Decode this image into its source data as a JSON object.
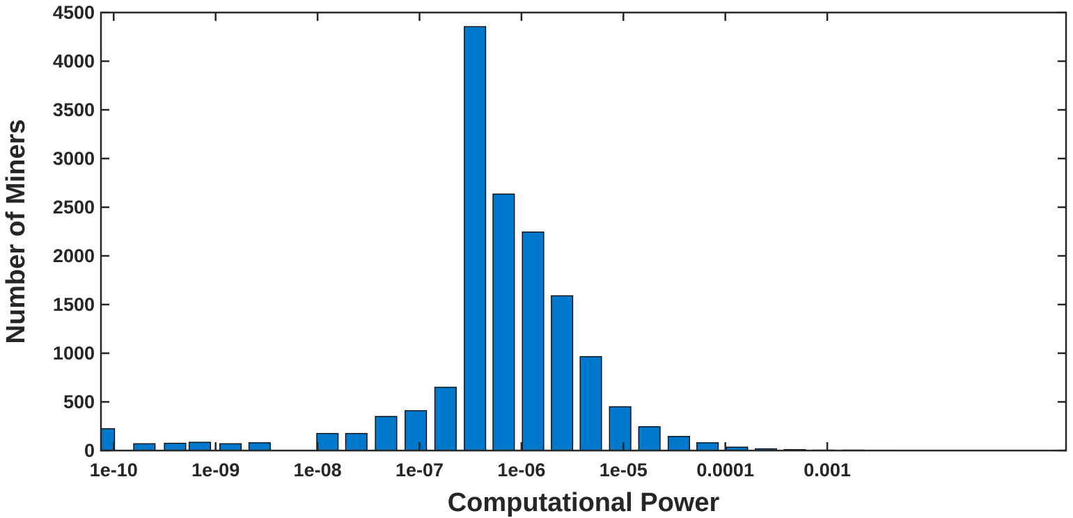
{
  "chart_data": {
    "type": "bar",
    "xlabel": "Computational Power",
    "ylabel": "Number of Miners",
    "xscale": "log",
    "xlim": [
      7.5e-11,
      0.22
    ],
    "ylim": [
      0,
      4500
    ],
    "grid": false,
    "bar_color": "#0079CC",
    "x_ticks": [
      {
        "value": 1e-10,
        "label": "1e-10"
      },
      {
        "value": 1e-09,
        "label": "1e-09"
      },
      {
        "value": 1e-08,
        "label": "1e-08"
      },
      {
        "value": 1e-07,
        "label": "1e-07"
      },
      {
        "value": 1e-06,
        "label": "1e-06"
      },
      {
        "value": 1e-05,
        "label": "1e-05"
      },
      {
        "value": 0.0001,
        "label": "0.0001"
      },
      {
        "value": 0.001,
        "label": "0.001"
      }
    ],
    "y_ticks": [
      0,
      500,
      1000,
      1500,
      2000,
      2500,
      3000,
      3500,
      4000,
      4500
    ],
    "x": [
      8e-11,
      2e-10,
      4e-10,
      7e-10,
      1.4e-09,
      2.7e-09,
      6.5e-09,
      1.25e-08,
      2.4e-08,
      4.7e-08,
      9.2e-08,
      1.8e-07,
      3.5e-07,
      6.7e-07,
      1.3e-06,
      2.5e-06,
      4.8e-06,
      9.3e-06,
      1.8e-05,
      3.5e-05,
      6.7e-05,
      0.00013,
      0.00025,
      0.00048,
      0.00092,
      0.0018,
      0.0035
    ],
    "values": [
      225,
      70,
      75,
      85,
      70,
      80,
      0,
      175,
      175,
      350,
      410,
      650,
      4355,
      2635,
      2245,
      1590,
      965,
      450,
      245,
      145,
      80,
      35,
      18,
      10,
      5,
      5,
      3
    ]
  }
}
